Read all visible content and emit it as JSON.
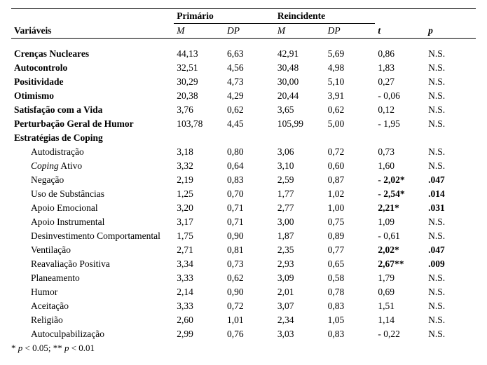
{
  "header": {
    "variaveis": "Variáveis",
    "primario": "Primário",
    "reincidente": "Reincidente",
    "M": "M",
    "DP": "DP",
    "t": "t",
    "p": "p"
  },
  "rows": [
    {
      "label": "Crenças Nucleares",
      "bold": true,
      "indent": false,
      "M1": "44,13",
      "DP1": "6,63",
      "M2": "42,91",
      "DP2": "5,69",
      "t": "0,86",
      "p": "N.S.",
      "tbold": false,
      "pbold": false,
      "spacer": true
    },
    {
      "label": "Autocontrolo",
      "bold": true,
      "indent": false,
      "M1": "32,51",
      "DP1": "4,56",
      "M2": "30,48",
      "DP2": "4,98",
      "t": "1,83",
      "p": "N.S.",
      "tbold": false,
      "pbold": false
    },
    {
      "label": "Positividade",
      "bold": true,
      "indent": false,
      "M1": "30,29",
      "DP1": "4,73",
      "M2": "30,00",
      "DP2": "5,10",
      "t": "0,27",
      "p": "N.S.",
      "tbold": false,
      "pbold": false
    },
    {
      "label": "Otimismo",
      "bold": true,
      "indent": false,
      "M1": "20,38",
      "DP1": "4,29",
      "M2": "20,44",
      "DP2": "3,91",
      "t": "- 0,06",
      "p": "N.S.",
      "tbold": false,
      "pbold": false
    },
    {
      "label": "Satisfação com a Vida",
      "bold": true,
      "indent": false,
      "M1": "3,76",
      "DP1": "0,62",
      "M2": "3,65",
      "DP2": "0,62",
      "t": "0,12",
      "p": "N.S.",
      "tbold": false,
      "pbold": false
    },
    {
      "label": "Perturbação Geral de Humor",
      "bold": true,
      "indent": false,
      "M1": "103,78",
      "DP1": "4,45",
      "M2": "105,99",
      "DP2": "5,00",
      "t": "- 1,95",
      "p": "N.S.",
      "tbold": false,
      "pbold": false
    },
    {
      "label": "Estratégias de Coping",
      "bold": true,
      "indent": false,
      "M1": "",
      "DP1": "",
      "M2": "",
      "DP2": "",
      "t": "",
      "p": "",
      "tbold": false,
      "pbold": false
    },
    {
      "label": "Autodistração",
      "bold": false,
      "indent": true,
      "M1": "3,18",
      "DP1": "0,80",
      "M2": "3,06",
      "DP2": "0,72",
      "t": "0,73",
      "p": "N.S.",
      "tbold": false,
      "pbold": false
    },
    {
      "label": "",
      "labelParts": [
        {
          "text": "Coping",
          "italic": true
        },
        {
          "text": " Ativo",
          "italic": false
        }
      ],
      "bold": false,
      "indent": true,
      "M1": "3,32",
      "DP1": "0,64",
      "M2": "3,10",
      "DP2": "0,60",
      "t": "1,60",
      "p": "N.S.",
      "tbold": false,
      "pbold": false
    },
    {
      "label": "Negação",
      "bold": false,
      "indent": true,
      "M1": "2,19",
      "DP1": "0,83",
      "M2": "2,59",
      "DP2": "0,87",
      "t": "- 2,02*",
      "p": ".047",
      "tbold": true,
      "pbold": true
    },
    {
      "label": "Uso de Substâncias",
      "bold": false,
      "indent": true,
      "M1": "1,25",
      "DP1": "0,70",
      "M2": "1,77",
      "DP2": "1,02",
      "t": "- 2,54*",
      "p": ".014",
      "tbold": true,
      "pbold": true
    },
    {
      "label": "Apoio Emocional",
      "bold": false,
      "indent": true,
      "M1": "3,20",
      "DP1": "0,71",
      "M2": "2,77",
      "DP2": "1,00",
      "t": "2,21*",
      "p": ".031",
      "tbold": true,
      "pbold": true
    },
    {
      "label": "Apoio Instrumental",
      "bold": false,
      "indent": true,
      "M1": "3,17",
      "DP1": "0,71",
      "M2": "3,00",
      "DP2": "0,75",
      "t": "1,09",
      "p": "N.S.",
      "tbold": false,
      "pbold": false
    },
    {
      "label": "Desinvestimento Comportamental",
      "bold": false,
      "indent": true,
      "M1": "1,75",
      "DP1": "0,90",
      "M2": "1,87",
      "DP2": "0,89",
      "t": "- 0,61",
      "p": "N.S.",
      "tbold": false,
      "pbold": false
    },
    {
      "label": "Ventilação",
      "bold": false,
      "indent": true,
      "M1": "2,71",
      "DP1": "0,81",
      "M2": "2,35",
      "DP2": "0,77",
      "t": "2,02*",
      "p": ".047",
      "tbold": true,
      "pbold": true
    },
    {
      "label": "Reavaliação Positiva",
      "bold": false,
      "indent": true,
      "M1": "3,34",
      "DP1": "0,73",
      "M2": "2,93",
      "DP2": "0,65",
      "t": "2,67**",
      "p": ".009",
      "tbold": true,
      "pbold": true
    },
    {
      "label": "Planeamento",
      "bold": false,
      "indent": true,
      "M1": "3,33",
      "DP1": "0,62",
      "M2": "3,09",
      "DP2": "0,58",
      "t": "1,79",
      "p": "N.S.",
      "tbold": false,
      "pbold": false
    },
    {
      "label": "Humor",
      "bold": false,
      "indent": true,
      "M1": "2,14",
      "DP1": "0,90",
      "M2": "2,01",
      "DP2": "0,78",
      "t": "0,69",
      "p": "N.S.",
      "tbold": false,
      "pbold": false
    },
    {
      "label": "Aceitação",
      "bold": false,
      "indent": true,
      "M1": "3,33",
      "DP1": "0,72",
      "M2": "3,07",
      "DP2": "0,83",
      "t": "1,51",
      "p": "N.S.",
      "tbold": false,
      "pbold": false
    },
    {
      "label": "Religião",
      "bold": false,
      "indent": true,
      "M1": "2,60",
      "DP1": "1,01",
      "M2": "2,34",
      "DP2": "1,05",
      "t": "1,14",
      "p": "N.S.",
      "tbold": false,
      "pbold": false
    },
    {
      "label": "Autoculpabilização",
      "bold": false,
      "indent": true,
      "M1": "2,99",
      "DP1": "0,76",
      "M2": "3,03",
      "DP2": "0,83",
      "t": "- 0,22",
      "p": "N.S.",
      "tbold": false,
      "pbold": false
    }
  ],
  "footnote": {
    "prefix1": "* ",
    "p": "p",
    "lt1": " < 0.05; ** ",
    "lt2": " < 0.01"
  },
  "style": {
    "font": "Times New Roman",
    "fontsize_pt": 11,
    "border_color": "#000000",
    "background": "#ffffff",
    "text_color": "#000000"
  }
}
